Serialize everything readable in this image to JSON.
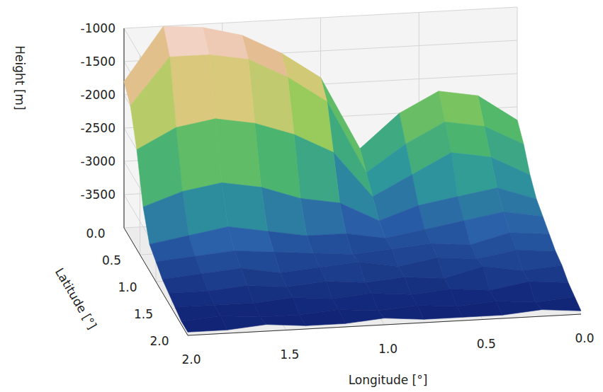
{
  "chart_data": {
    "type": "surface3d",
    "x_label": "Longitude [°]",
    "y_label": "Latitude [°]",
    "z_label": "Height [m]",
    "x": [
      0,
      0.2,
      0.4,
      0.6,
      0.8,
      1.0,
      1.2,
      1.4,
      1.6,
      1.8,
      2.0
    ],
    "y": [
      0,
      0.2,
      0.4,
      0.6,
      0.8,
      1.0,
      1.2,
      1.4,
      1.6,
      1.8,
      2.0
    ],
    "z": [
      [
        -2700,
        -2300,
        -2200,
        -2500,
        -3000,
        -1900,
        -1500,
        -1200,
        -1050,
        -1000,
        -1800
      ],
      [
        -2900,
        -2600,
        -2500,
        -2800,
        -3200,
        -2100,
        -1700,
        -1400,
        -1300,
        -1300,
        -2000
      ],
      [
        -3200,
        -2900,
        -2800,
        -3100,
        -3400,
        -2700,
        -2400,
        -2200,
        -2100,
        -2200,
        -2500
      ],
      [
        -3400,
        -3200,
        -3300,
        -3400,
        -3600,
        -3300,
        -3200,
        -3000,
        -2900,
        -3000,
        -3200
      ],
      [
        -3500,
        -3400,
        -3500,
        -3600,
        -3700,
        -3600,
        -3600,
        -3500,
        -3400,
        -3500,
        -3600
      ],
      [
        -3600,
        -3550,
        -3700,
        -3650,
        -3700,
        -3750,
        -3700,
        -3650,
        -3600,
        -3650,
        -3700
      ],
      [
        -3700,
        -3650,
        -3750,
        -3700,
        -3800,
        -3700,
        -3750,
        -3800,
        -3700,
        -3750,
        -3800
      ],
      [
        -3750,
        -3800,
        -3700,
        -3850,
        -3800,
        -3850,
        -3800,
        -3850,
        -3800,
        -3850,
        -3850
      ],
      [
        -3850,
        -3800,
        -3900,
        -3850,
        -3900,
        -3850,
        -3900,
        -3850,
        -3900,
        -3900,
        -3900
      ],
      [
        -3900,
        -3950,
        -3900,
        -3950,
        -3900,
        -3950,
        -3900,
        -3950,
        -3950,
        -3900,
        -3950
      ],
      [
        -3950,
        -3900,
        -3950,
        -3950,
        -3950,
        -3900,
        -3950,
        -3950,
        -3900,
        -3950,
        -3950
      ]
    ],
    "xlim": [
      0,
      2
    ],
    "ylim": [
      0,
      2
    ],
    "zlim": [
      -4000,
      -1000
    ],
    "xticks": [
      {
        "value": 0,
        "label": "0.0"
      },
      0.5,
      {
        "value": 1,
        "label": "1.0"
      },
      1.5,
      {
        "value": 2,
        "label": "2.0"
      }
    ],
    "yticks": [
      {
        "value": 0,
        "label": "0.0"
      },
      0.5,
      {
        "value": 1,
        "label": "1.0"
      },
      1.5,
      {
        "value": 2,
        "label": "2.0"
      }
    ],
    "zticks": [
      -3500,
      -3000,
      -2500,
      -2000,
      -1500,
      -1000
    ],
    "grid": true
  }
}
